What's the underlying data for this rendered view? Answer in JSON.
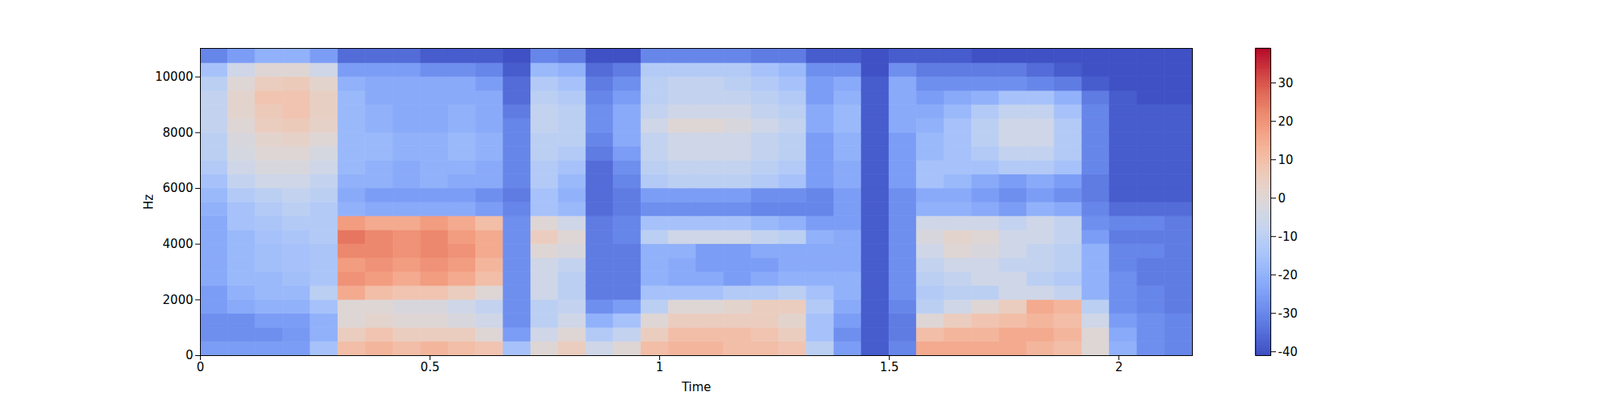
{
  "chart_data": {
    "type": "heatmap",
    "x_label": "Time",
    "y_label": "Hz",
    "xlim": [
      0,
      2.16
    ],
    "xticks": [
      0,
      0.5,
      1,
      1.5,
      2
    ],
    "ylim": [
      0,
      11025
    ],
    "yticks": [
      0,
      2000,
      4000,
      6000,
      8000,
      10000
    ],
    "times": [
      0,
      0.06,
      0.12,
      0.18,
      0.24,
      0.3,
      0.36,
      0.42,
      0.48,
      0.54,
      0.6,
      0.66,
      0.72,
      0.78,
      0.84,
      0.9,
      0.96,
      1.02,
      1.08,
      1.14,
      1.2,
      1.26,
      1.32,
      1.38,
      1.44,
      1.5,
      1.56,
      1.62,
      1.68,
      1.74,
      1.8,
      1.86,
      1.92,
      1.98,
      2.04,
      2.1
    ],
    "frequencies": [
      0,
      500,
      1000,
      1500,
      2000,
      2500,
      3000,
      3500,
      4000,
      4500,
      5000,
      5500,
      6000,
      6500,
      7000,
      7500,
      8000,
      8500,
      9000,
      9500,
      10000,
      10500
    ],
    "values": [
      [
        -25,
        -28,
        -28,
        -25,
        -25,
        -22,
        -22,
        -22,
        -22,
        -22,
        -20,
        -18,
        -15,
        -12,
        -10,
        -10,
        -8,
        -8,
        -8,
        -10,
        -15,
        -30
      ],
      [
        -25,
        -28,
        -28,
        -22,
        -20,
        -18,
        -18,
        -18,
        -18,
        -15,
        -15,
        -12,
        -8,
        -5,
        -3,
        -2,
        0,
        2,
        2,
        0,
        -5,
        -25
      ],
      [
        -25,
        -28,
        -25,
        -20,
        -18,
        -18,
        -16,
        -16,
        -15,
        -14,
        -12,
        -10,
        -5,
        -2,
        0,
        2,
        5,
        6,
        8,
        5,
        0,
        -20
      ],
      [
        -25,
        -26,
        -25,
        -20,
        -18,
        -16,
        -15,
        -15,
        -14,
        -12,
        -10,
        -8,
        -5,
        -2,
        0,
        3,
        6,
        8,
        8,
        6,
        0,
        -20
      ],
      [
        -15,
        -20,
        -20,
        -15,
        -10,
        -14,
        -14,
        -14,
        -12,
        -12,
        -12,
        -10,
        -8,
        -5,
        -3,
        0,
        3,
        4,
        4,
        2,
        -5,
        -25
      ],
      [
        10,
        5,
        0,
        0,
        15,
        20,
        18,
        22,
        25,
        18,
        -20,
        -22,
        -20,
        -18,
        -18,
        -18,
        -18,
        -18,
        -18,
        -20,
        -25,
        -35
      ],
      [
        12,
        8,
        2,
        0,
        10,
        18,
        20,
        22,
        22,
        15,
        -22,
        -25,
        -20,
        -20,
        -18,
        -18,
        -20,
        -20,
        -22,
        -22,
        -25,
        -35
      ],
      [
        10,
        5,
        0,
        -2,
        8,
        15,
        18,
        20,
        20,
        15,
        -22,
        -25,
        -22,
        -22,
        -20,
        -20,
        -22,
        -22,
        -22,
        -22,
        -25,
        -35
      ],
      [
        12,
        5,
        0,
        -2,
        8,
        18,
        20,
        22,
        22,
        18,
        -22,
        -25,
        -20,
        -20,
        -20,
        -20,
        -22,
        -22,
        -22,
        -22,
        -28,
        -38
      ],
      [
        10,
        5,
        -2,
        -5,
        5,
        15,
        18,
        20,
        18,
        15,
        -22,
        -25,
        -22,
        -20,
        -18,
        -18,
        -20,
        -20,
        -22,
        -22,
        -28,
        -38
      ],
      [
        8,
        0,
        -5,
        -8,
        0,
        10,
        12,
        15,
        15,
        10,
        -25,
        -28,
        -22,
        -22,
        -20,
        -20,
        -22,
        -22,
        -22,
        -25,
        -30,
        -38
      ],
      [
        -15,
        -25,
        -28,
        -28,
        -28,
        -28,
        -28,
        -28,
        -28,
        -28,
        -30,
        -32,
        -30,
        -30,
        -30,
        -30,
        -30,
        -32,
        -35,
        -35,
        -38,
        -40
      ],
      [
        0,
        -5,
        -10,
        -10,
        -5,
        -5,
        -5,
        0,
        5,
        0,
        -15,
        -15,
        -12,
        -12,
        -10,
        -10,
        -8,
        -8,
        -10,
        -12,
        -18,
        -30
      ],
      [
        5,
        0,
        -5,
        -8,
        -10,
        -10,
        -8,
        -2,
        0,
        -5,
        -18,
        -20,
        -18,
        -15,
        -12,
        -10,
        -10,
        -10,
        -12,
        -15,
        -20,
        -32
      ],
      [
        -5,
        -12,
        -20,
        -28,
        -32,
        -32,
        -32,
        -32,
        -32,
        -32,
        -35,
        -35,
        -35,
        -35,
        -32,
        -30,
        -28,
        -28,
        -30,
        -32,
        -35,
        -40
      ],
      [
        0,
        -8,
        -15,
        -25,
        -32,
        -32,
        -32,
        -32,
        -30,
        -30,
        -32,
        -32,
        -30,
        -28,
        -25,
        -22,
        -22,
        -22,
        -25,
        -28,
        -32,
        -40
      ],
      [
        10,
        5,
        0,
        -10,
        -15,
        -20,
        -20,
        -20,
        -10,
        -15,
        -28,
        -25,
        -12,
        -10,
        -8,
        -8,
        -5,
        -8,
        -10,
        -10,
        -12,
        -30
      ],
      [
        12,
        10,
        5,
        0,
        -15,
        -22,
        -22,
        -20,
        -5,
        -15,
        -28,
        -25,
        -10,
        -8,
        -5,
        -5,
        0,
        -5,
        -8,
        -8,
        -12,
        -30
      ],
      [
        12,
        10,
        5,
        0,
        -15,
        -22,
        -25,
        -25,
        -5,
        -15,
        -28,
        -25,
        -10,
        -8,
        -5,
        -5,
        0,
        -5,
        -8,
        -8,
        -12,
        -30
      ],
      [
        10,
        10,
        5,
        2,
        -12,
        -25,
        -25,
        -25,
        -5,
        -15,
        -28,
        -25,
        -10,
        -8,
        -5,
        -5,
        -2,
        -5,
        -8,
        -10,
        -12,
        -30
      ],
      [
        10,
        8,
        5,
        5,
        -12,
        -22,
        -25,
        -22,
        -8,
        -18,
        -30,
        -28,
        -12,
        -10,
        -8,
        -8,
        -5,
        -8,
        -10,
        -12,
        -15,
        -32
      ],
      [
        8,
        5,
        2,
        5,
        -10,
        -20,
        -22,
        -22,
        -10,
        -20,
        -30,
        -28,
        -15,
        -12,
        -10,
        -10,
        -8,
        -10,
        -12,
        -15,
        -18,
        -32
      ],
      [
        -10,
        -15,
        -15,
        -12,
        -15,
        -20,
        -22,
        -22,
        -20,
        -25,
        -30,
        -30,
        -25,
        -25,
        -25,
        -25,
        -22,
        -22,
        -25,
        -25,
        -28,
        -38
      ],
      [
        -25,
        -28,
        -25,
        -22,
        -20,
        -20,
        -22,
        -22,
        -22,
        -25,
        -25,
        -25,
        -22,
        -22,
        -20,
        -20,
        -18,
        -18,
        -20,
        -22,
        -28,
        -38
      ],
      [
        -38,
        -38,
        -38,
        -38,
        -38,
        -38,
        -38,
        -38,
        -38,
        -38,
        -38,
        -38,
        -38,
        -38,
        -38,
        -38,
        -38,
        -38,
        -38,
        -38,
        -40,
        -40
      ],
      [
        -30,
        -32,
        -32,
        -30,
        -28,
        -28,
        -28,
        -28,
        -28,
        -28,
        -28,
        -28,
        -25,
        -25,
        -25,
        -25,
        -22,
        -22,
        -22,
        -22,
        -28,
        -38
      ],
      [
        15,
        10,
        0,
        -10,
        -12,
        -10,
        -8,
        -5,
        -2,
        -5,
        -20,
        -22,
        -15,
        -15,
        -18,
        -18,
        -20,
        -22,
        -25,
        -28,
        -32,
        -38
      ],
      [
        15,
        12,
        5,
        -5,
        -10,
        -8,
        -5,
        0,
        2,
        -5,
        -20,
        -22,
        -18,
        -15,
        -15,
        -15,
        -15,
        -18,
        -22,
        -28,
        -32,
        -38
      ],
      [
        15,
        12,
        8,
        0,
        -10,
        -5,
        -5,
        -2,
        0,
        -5,
        -22,
        -25,
        -22,
        -15,
        -12,
        -10,
        -10,
        -12,
        -20,
        -28,
        -32,
        -40
      ],
      [
        15,
        15,
        10,
        5,
        -5,
        -5,
        -8,
        -5,
        -5,
        -8,
        -25,
        -28,
        -25,
        -12,
        -8,
        -5,
        -5,
        -8,
        -15,
        -28,
        -32,
        -40
      ],
      [
        12,
        15,
        12,
        15,
        -5,
        -10,
        -8,
        -8,
        -5,
        -5,
        -20,
        -25,
        -22,
        -12,
        -8,
        -5,
        -5,
        -8,
        -15,
        -30,
        -35,
        -40
      ],
      [
        10,
        12,
        10,
        12,
        -8,
        -12,
        -10,
        -10,
        -8,
        -8,
        -22,
        -28,
        -25,
        -15,
        -12,
        -12,
        -12,
        -15,
        -20,
        -32,
        -38,
        -40
      ],
      [
        0,
        0,
        -5,
        -10,
        -20,
        -20,
        -20,
        -20,
        -25,
        -28,
        -30,
        -32,
        -32,
        -30,
        -30,
        -30,
        -30,
        -30,
        -32,
        -38,
        -40,
        -40
      ],
      [
        -20,
        -22,
        -25,
        -28,
        -28,
        -28,
        -30,
        -30,
        -32,
        -30,
        -35,
        -38,
        -38,
        -38,
        -38,
        -38,
        -38,
        -38,
        -38,
        -40,
        -40,
        -40
      ],
      [
        -28,
        -28,
        -28,
        -30,
        -30,
        -32,
        -32,
        -30,
        -32,
        -30,
        -35,
        -38,
        -38,
        -38,
        -38,
        -38,
        -38,
        -38,
        -40,
        -40,
        -40,
        -40
      ],
      [
        -30,
        -30,
        -30,
        -32,
        -32,
        -32,
        -32,
        -32,
        -32,
        -32,
        -35,
        -38,
        -38,
        -38,
        -38,
        -38,
        -38,
        -38,
        -40,
        -40,
        -40,
        -40
      ]
    ],
    "colorbar": {
      "lim": [
        -41,
        39
      ],
      "ticks": [
        -40,
        -30,
        -20,
        -10,
        0,
        10,
        20,
        30
      ]
    }
  }
}
